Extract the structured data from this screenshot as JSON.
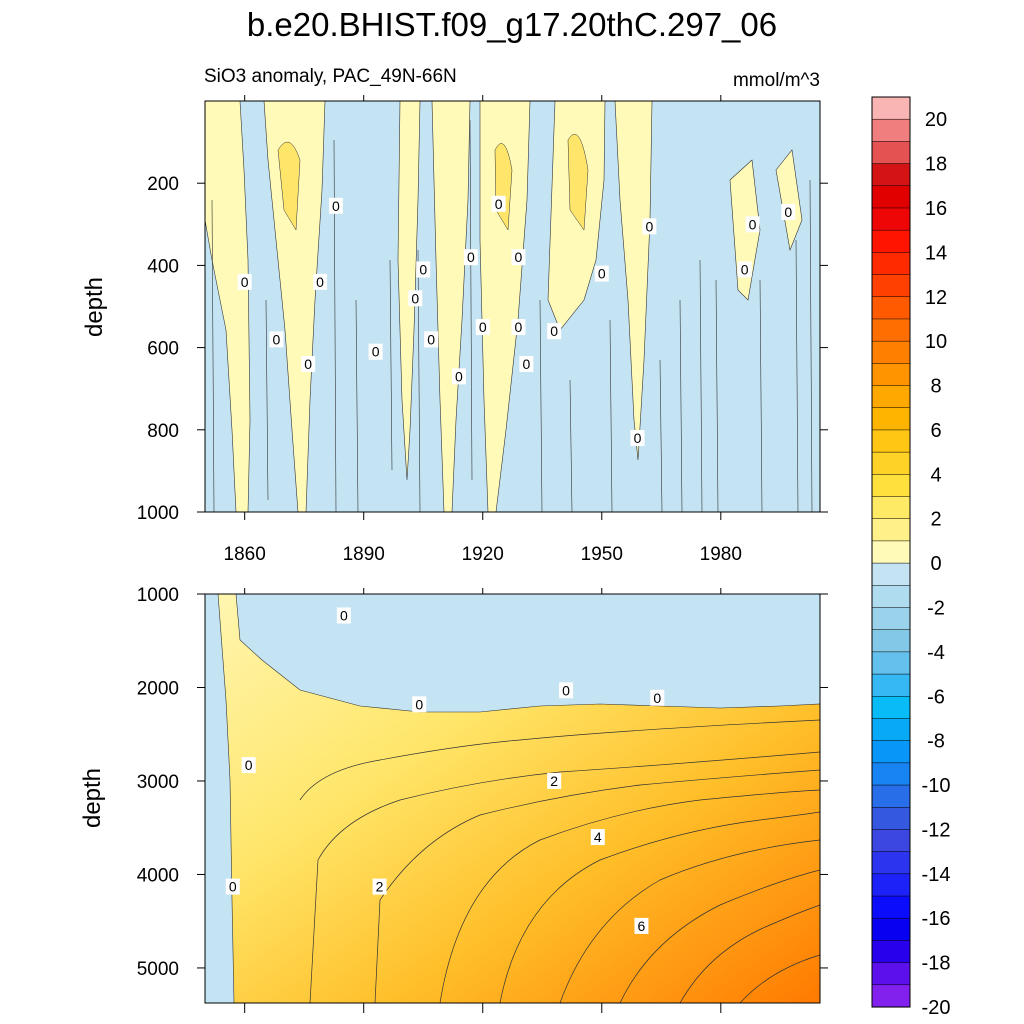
{
  "chart_data": [
    {
      "type": "heatmap",
      "panel": "upper",
      "title": "b.e20.BHIST.f09_g17.20thC.297_06",
      "subtitle_left": "SiO3 anomaly, PAC_49N-66N",
      "subtitle_right": "mmol/m^3",
      "xlabel": "",
      "ylabel": "depth",
      "xlim": [
        1850,
        2005
      ],
      "ylim": [
        0,
        1000
      ],
      "x_ticks": [
        1860,
        1890,
        1920,
        1950,
        1980
      ],
      "y_ticks": [
        200,
        400,
        600,
        800,
        1000
      ],
      "contour_labels": [
        {
          "text": "0",
          "year": 1860,
          "depth": 440
        },
        {
          "text": "0",
          "year": 1868,
          "depth": 580
        },
        {
          "text": "0",
          "year": 1876,
          "depth": 640
        },
        {
          "text": "0",
          "year": 1879,
          "depth": 440
        },
        {
          "text": "0",
          "year": 1883,
          "depth": 255
        },
        {
          "text": "0",
          "year": 1893,
          "depth": 610
        },
        {
          "text": "0",
          "year": 1903,
          "depth": 480
        },
        {
          "text": "0",
          "year": 1905,
          "depth": 410
        },
        {
          "text": "0",
          "year": 1907,
          "depth": 580
        },
        {
          "text": "0",
          "year": 1914,
          "depth": 670
        },
        {
          "text": "0",
          "year": 1917,
          "depth": 380
        },
        {
          "text": "0",
          "year": 1920,
          "depth": 550
        },
        {
          "text": "0",
          "year": 1924,
          "depth": 250
        },
        {
          "text": "0",
          "year": 1929,
          "depth": 380
        },
        {
          "text": "0",
          "year": 1929,
          "depth": 550
        },
        {
          "text": "0",
          "year": 1931,
          "depth": 640
        },
        {
          "text": "0",
          "year": 1938,
          "depth": 560
        },
        {
          "text": "0",
          "year": 1950,
          "depth": 420
        },
        {
          "text": "0",
          "year": 1959,
          "depth": 820
        },
        {
          "text": "0",
          "year": 1962,
          "depth": 305
        },
        {
          "text": "0",
          "year": 1986,
          "depth": 410
        },
        {
          "text": "0",
          "year": 1988,
          "depth": 300
        },
        {
          "text": "0",
          "year": 1997,
          "depth": 270
        }
      ]
    },
    {
      "type": "heatmap",
      "panel": "lower",
      "xlabel": "",
      "ylabel": "depth",
      "xlim": [
        1850,
        2005
      ],
      "ylim": [
        1000,
        5375
      ],
      "y_ticks": [
        1000,
        2000,
        3000,
        4000,
        5000
      ],
      "contour_labels": [
        {
          "text": "0",
          "year": 1885,
          "depth": 1230
        },
        {
          "text": "0",
          "year": 1904,
          "depth": 2180
        },
        {
          "text": "0",
          "year": 1941,
          "depth": 2030
        },
        {
          "text": "0",
          "year": 1964,
          "depth": 2110
        },
        {
          "text": "0",
          "year": 1861,
          "depth": 2830
        },
        {
          "text": "2",
          "year": 1938,
          "depth": 3000
        },
        {
          "text": "0",
          "year": 1857,
          "depth": 4130
        },
        {
          "text": "2",
          "year": 1894,
          "depth": 4130
        },
        {
          "text": "4",
          "year": 1949,
          "depth": 3600
        },
        {
          "text": "6",
          "year": 1960,
          "depth": 4550
        }
      ]
    }
  ],
  "colorbar": {
    "labels": [
      "20",
      "18",
      "16",
      "14",
      "12",
      "10",
      "8",
      "6",
      "4",
      "2",
      "0",
      "-2",
      "-4",
      "-6",
      "-8",
      "-10",
      "-12",
      "-14",
      "-16",
      "-18",
      "-20"
    ],
    "colors": [
      "#f9b4b4",
      "#f07e7e",
      "#e45252",
      "#d41414",
      "#e00000",
      "#ee0505",
      "#ff1400",
      "#ff2a00",
      "#ff4000",
      "#ff5a00",
      "#ff6e00",
      "#ff8000",
      "#ff9400",
      "#ffa800",
      "#ffb400",
      "#ffc614",
      "#ffd228",
      "#ffe03c",
      "#ffea66",
      "#fff08a",
      "#fffab8",
      "#c4e4f4",
      "#b0dcf0",
      "#9ad2ec",
      "#84c8e8",
      "#64c0ec",
      "#36b8f4",
      "#08bcf8",
      "#08aaf8",
      "#0896f8",
      "#1884f4",
      "#286ee8",
      "#3458e0",
      "#3c46e0",
      "#2c34f0",
      "#1c22f8",
      "#0c0cfc",
      "#0800f0",
      "#2800ec",
      "#5c10ec",
      "#8220ee"
    ]
  }
}
